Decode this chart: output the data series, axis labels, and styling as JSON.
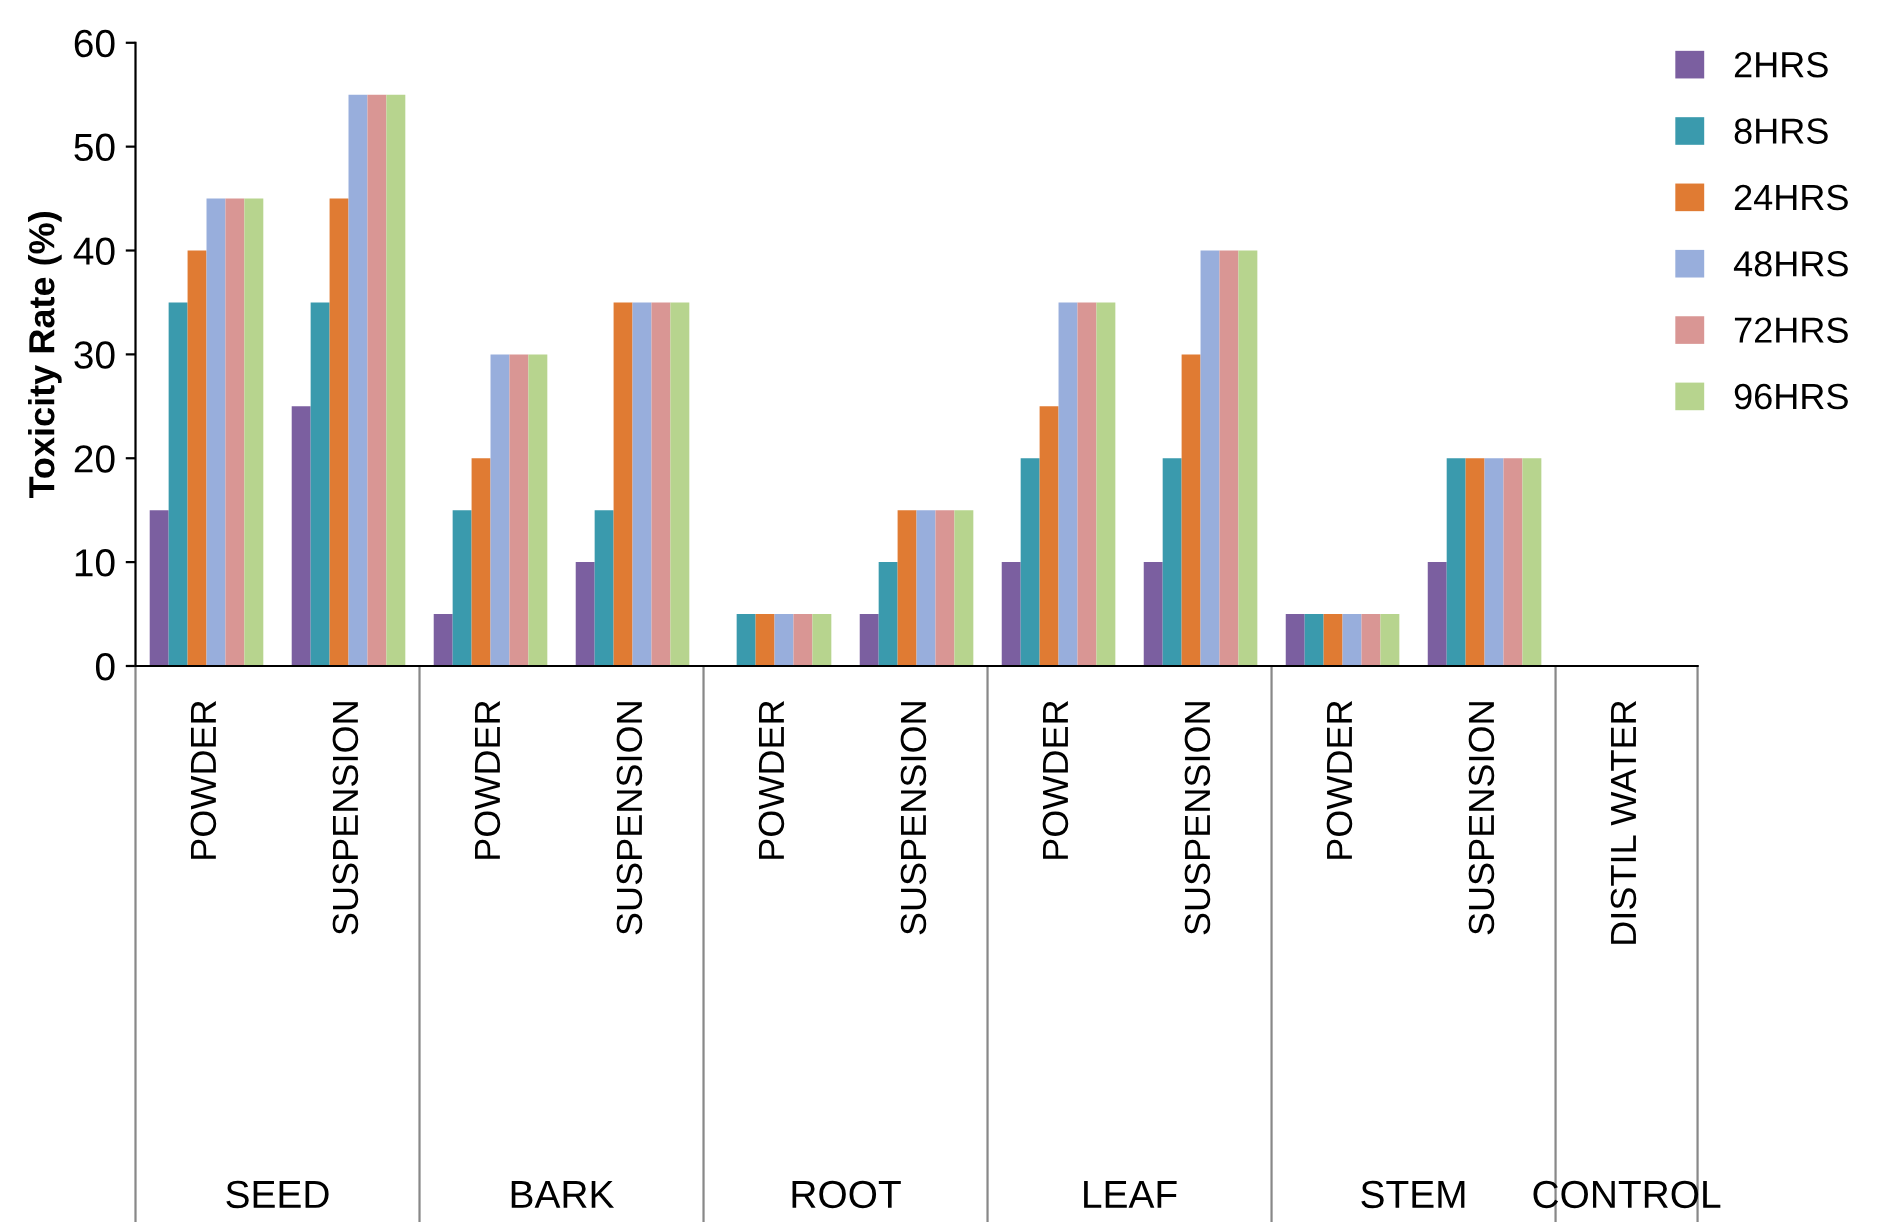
{
  "chart_data": {
    "type": "bar",
    "ylabel": "Toxicity Rate (%)",
    "categories": [
      "POWDER",
      "SUSPENSION",
      "POWDER",
      "SUSPENSION",
      "POWDER",
      "SUSPENSION",
      "POWDER",
      "SUSPENSION",
      "POWDER",
      "SUSPENSION",
      "DISTIL WATER"
    ],
    "annotations": [
      "SEED",
      "BARK",
      "ROOT",
      "LEAF",
      "STEM",
      "CONTROL"
    ],
    "series": [
      {
        "name": "2HRS",
        "color": "#7b5fa0",
        "values": [
          15,
          25,
          5,
          10,
          0,
          5,
          10,
          10,
          5,
          10,
          0
        ]
      },
      {
        "name": "8HRS",
        "color": "#3a9aad",
        "values": [
          35,
          35,
          15,
          15,
          5,
          10,
          20,
          20,
          5,
          20,
          0
        ]
      },
      {
        "name": "24HRS",
        "color": "#e07b33",
        "values": [
          40,
          45,
          20,
          35,
          5,
          15,
          25,
          30,
          5,
          20,
          0
        ]
      },
      {
        "name": "48HRS",
        "color": "#98aedc",
        "values": [
          45,
          55,
          30,
          35,
          5,
          15,
          35,
          40,
          5,
          20,
          0
        ]
      },
      {
        "name": "72HRS",
        "color": "#d99694",
        "values": [
          45,
          55,
          30,
          35,
          5,
          15,
          35,
          40,
          5,
          20,
          0
        ]
      },
      {
        "name": "96HRS",
        "color": "#b7d48e",
        "values": [
          45,
          55,
          30,
          35,
          5,
          15,
          35,
          40,
          5,
          20,
          0
        ]
      }
    ],
    "ylim": [
      0,
      60
    ],
    "yticks": [
      0,
      10,
      20,
      30,
      40,
      50,
      60
    ],
    "grid": false,
    "legend": "top right"
  }
}
